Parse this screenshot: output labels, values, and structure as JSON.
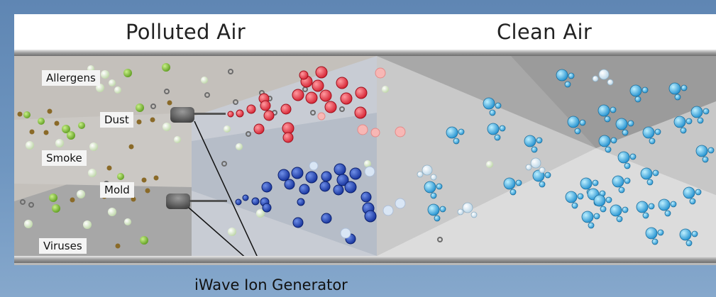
{
  "titles": {
    "left": "Polluted Air",
    "right": "Clean Air"
  },
  "pollutants": [
    "Allergens",
    "Dust",
    "Smoke",
    "Mold",
    "Viruses"
  ],
  "generator_label": "iWave Ion Generator",
  "colors": {
    "positive_ion": "#e0323e",
    "negative_ion": "#2140a8",
    "clean_molecule": "#3aa6dd",
    "allergen": "#8fc43a",
    "background": "#6f96c0"
  }
}
